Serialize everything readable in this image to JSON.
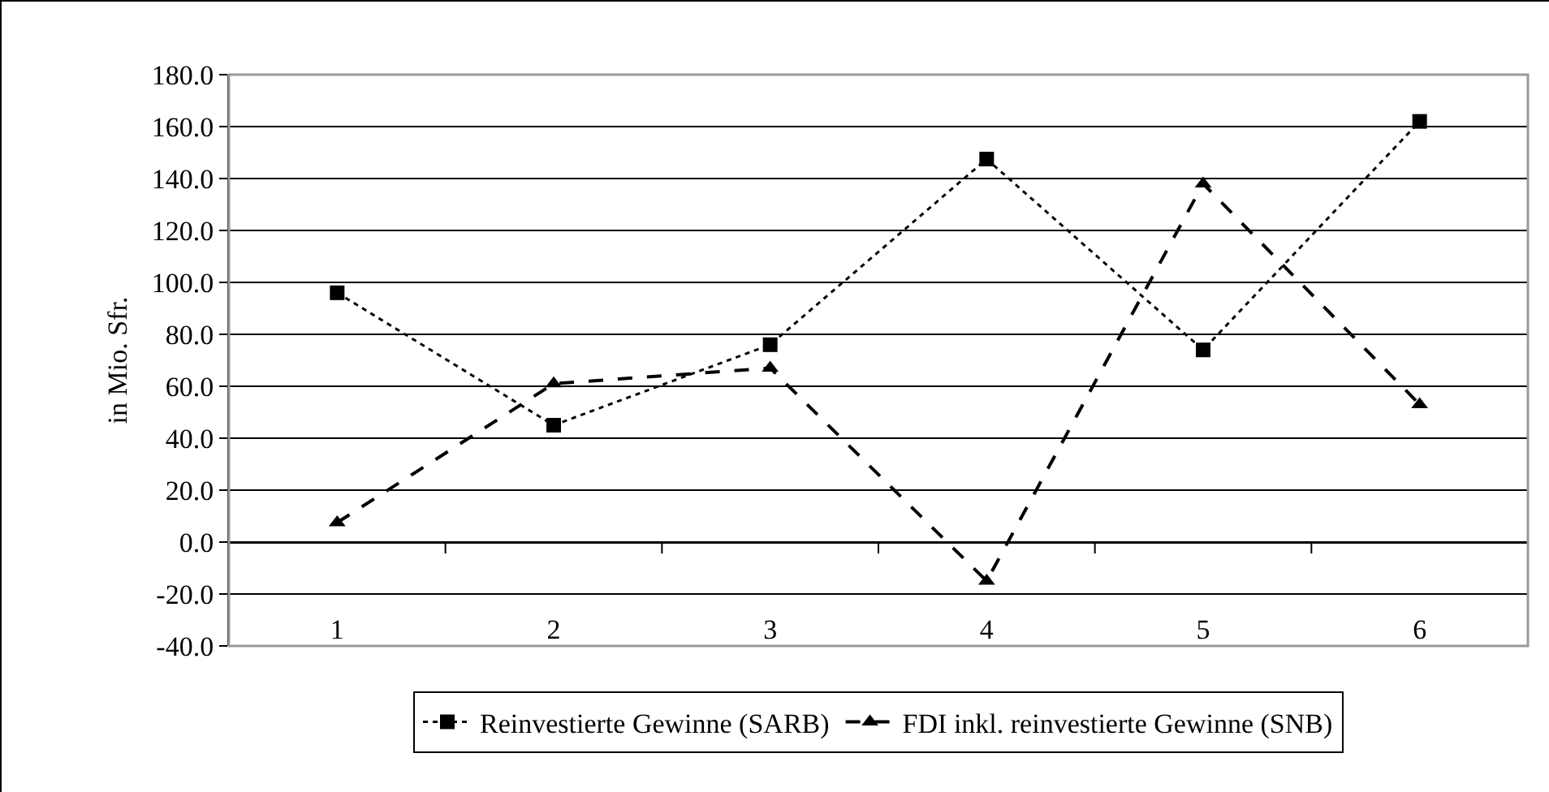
{
  "chart_data": {
    "type": "line",
    "ylabel": "in Mio. Sfr.",
    "categories": [
      "1",
      "2",
      "3",
      "4",
      "5",
      "6"
    ],
    "series": [
      {
        "name": "Reinvestierte Gewinne (SARB)",
        "color": "#000000",
        "values": [
          96,
          45,
          76,
          147.5,
          74,
          162
        ],
        "marker": "square",
        "line_style": "dotted"
      },
      {
        "name": "FDI inkl. reinvestierte Gewinne (SNB)",
        "color": "#000000",
        "values": [
          7.5,
          61,
          67,
          -15,
          138,
          53
        ],
        "marker": "triangle",
        "line_style": "dashed"
      }
    ],
    "ylim": [
      -40,
      180
    ],
    "yticks": [
      {
        "value": -40,
        "label": "-40.0"
      },
      {
        "value": -20,
        "label": "-20.0"
      },
      {
        "value": 0,
        "label": "0.0"
      },
      {
        "value": 20,
        "label": "20.0"
      },
      {
        "value": 40,
        "label": "40.0"
      },
      {
        "value": 60,
        "label": "60.0"
      },
      {
        "value": 80,
        "label": "80.0"
      },
      {
        "value": 100,
        "label": "100.0"
      },
      {
        "value": 120,
        "label": "120.0"
      },
      {
        "value": 140,
        "label": "140.0"
      },
      {
        "value": 160,
        "label": "160.0"
      },
      {
        "value": 180,
        "label": "180.0"
      }
    ],
    "grid": "y",
    "legend": "bottom"
  }
}
